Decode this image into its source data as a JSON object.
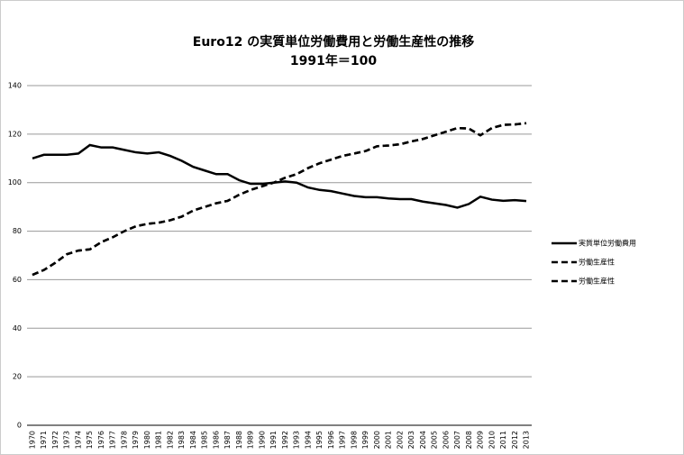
{
  "chart_data": {
    "type": "line",
    "title": "Euro12 の実質単位労働費用と労働生産性の推移",
    "subtitle": "1991年＝100",
    "categories": [
      "1970",
      "1971",
      "1972",
      "1973",
      "1974",
      "1975",
      "1976",
      "1977",
      "1978",
      "1979",
      "1980",
      "1981",
      "1982",
      "1983",
      "1984",
      "1985",
      "1986",
      "1987",
      "1988",
      "1989",
      "1990",
      "1991",
      "1992",
      "1993",
      "1994",
      "1995",
      "1996",
      "1997",
      "1998",
      "1999",
      "2000",
      "2001",
      "2002",
      "2003",
      "2004",
      "2005",
      "2006",
      "2007",
      "2008",
      "2009",
      "2010",
      "2011",
      "2012",
      "2013"
    ],
    "series": [
      {
        "name": "実質単位労働費用",
        "color": "#000000",
        "line_style": "solid",
        "values": [
          110,
          111.5,
          111.5,
          111.5,
          112,
          115.5,
          114.5,
          114.5,
          113.5,
          112.5,
          112,
          112.5,
          111,
          109,
          106.5,
          105,
          103.5,
          103.5,
          101,
          99.5,
          99.5,
          100,
          100.5,
          100,
          98,
          97,
          96.5,
          95.5,
          94.5,
          94,
          94,
          93.5,
          93.2,
          93.2,
          92.2,
          91.5,
          90.8,
          89.7,
          91.2,
          94.2,
          93,
          92.5,
          92.8,
          92.4
        ]
      },
      {
        "name": "労働生産性",
        "color": "#000000",
        "line_style": "dashed",
        "values": [
          62,
          64,
          67,
          70.5,
          72,
          72.5,
          75.5,
          77.5,
          80,
          82,
          83,
          83.5,
          84.5,
          86,
          88.5,
          90,
          91.5,
          92.5,
          95,
          97,
          98.5,
          100,
          102,
          103.5,
          106,
          108,
          109.5,
          111,
          112,
          113,
          115,
          115.3,
          115.8,
          117,
          118,
          119.5,
          121,
          122.5,
          122.3,
          119.5,
          122.5,
          123.8,
          124,
          124.5
        ]
      },
      {
        "name": "労働生産性",
        "color": "#000000",
        "line_style": "dashed",
        "values": [
          62,
          64,
          67,
          70.5,
          72,
          72.5,
          75.5,
          77.5,
          80,
          82,
          83,
          83.5,
          84.5,
          86,
          88.5,
          90,
          91.5,
          92.5,
          95,
          97,
          98.5,
          100,
          102,
          103.5,
          106,
          108,
          109.5,
          111,
          112,
          113,
          115,
          115.3,
          115.8,
          117,
          118,
          119.5,
          121,
          122.5,
          122.3,
          119.5,
          122.5,
          123.8,
          124,
          124.5
        ]
      }
    ],
    "ylim": [
      0,
      140
    ],
    "yticks": [
      0,
      20,
      40,
      60,
      80,
      100,
      120,
      140
    ],
    "grid": true,
    "legend": "right"
  }
}
